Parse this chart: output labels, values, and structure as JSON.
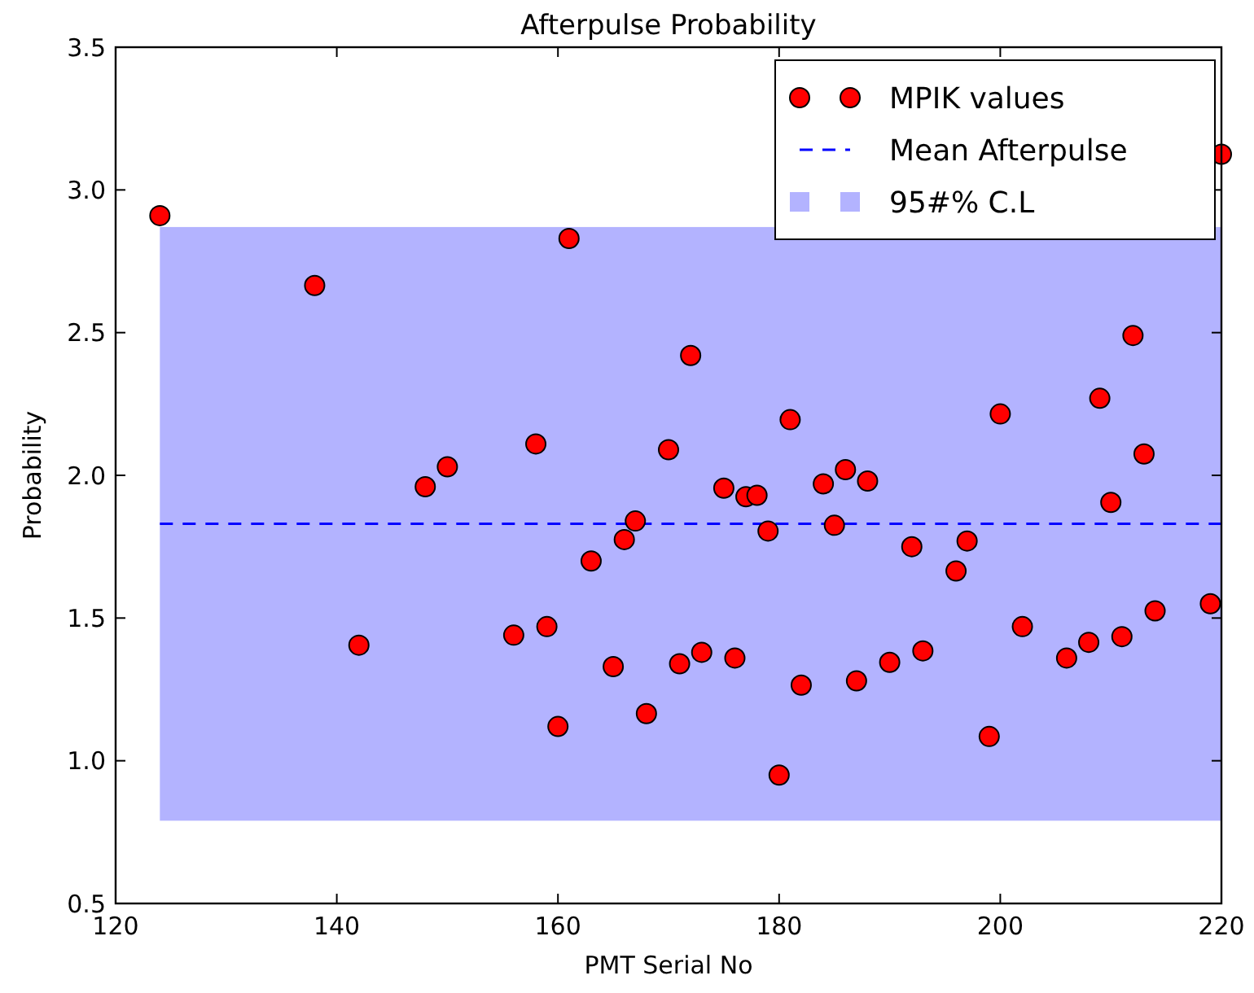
{
  "chart_data": {
    "type": "scatter",
    "title": "Afterpulse Probability",
    "xlabel": "PMT Serial No",
    "ylabel": "Probability",
    "xlim": [
      120,
      220
    ],
    "xticks": [
      120,
      140,
      160,
      180,
      200,
      220
    ],
    "ylim": [
      0.5,
      3.5
    ],
    "yticks": [
      {
        "value": 0.5,
        "label": "0.5"
      },
      {
        "value": 1,
        "label": "1.0"
      },
      {
        "value": 1.5,
        "label": "1.5"
      },
      {
        "value": 2,
        "label": "2.0"
      },
      {
        "value": 2.5,
        "label": "2.5"
      },
      {
        "value": 3,
        "label": "3.0"
      },
      {
        "value": 3.5,
        "label": "3.5"
      }
    ],
    "grid": false,
    "legend": "top right",
    "marker": "circle",
    "series": [
      {
        "name": "MPIK values",
        "color": "#ff0000",
        "x": [
          124,
          138,
          142,
          148,
          150,
          156,
          158,
          159,
          160,
          161,
          163,
          165,
          166,
          167,
          168,
          170,
          171,
          172,
          173,
          175,
          176,
          177,
          178,
          179,
          180,
          181,
          182,
          184,
          185,
          186,
          187,
          188,
          190,
          192,
          193,
          194,
          196,
          197,
          199,
          200,
          202,
          206,
          208,
          209,
          210,
          211,
          212,
          213,
          214,
          219,
          220
        ],
        "values": [
          2.91,
          2.665,
          1.405,
          1.96,
          2.03,
          1.44,
          2.11,
          1.47,
          1.12,
          2.83,
          1.7,
          1.33,
          1.775,
          1.84,
          1.165,
          2.09,
          1.34,
          2.42,
          1.38,
          1.955,
          1.36,
          1.925,
          1.93,
          1.805,
          0.95,
          2.195,
          1.265,
          1.97,
          1.825,
          2.02,
          1.28,
          1.98,
          1.345,
          1.75,
          1.385,
          null,
          1.665,
          1.77,
          1.085,
          2.215,
          1.47,
          1.36,
          1.415,
          2.27,
          1.905,
          1.435,
          2.49,
          2.075,
          1.525,
          1.55,
          3.125
        ]
      }
    ],
    "ref_lines": [
      {
        "axis": "y",
        "value": 1.83,
        "label": "Mean Afterpulse",
        "color": "#0000ff",
        "line_style": "dashed"
      }
    ],
    "bands": [
      {
        "axis": "y",
        "from": 0.79,
        "to": 2.87,
        "label": "95#% C.L",
        "color": "#b3b3ff"
      }
    ]
  }
}
